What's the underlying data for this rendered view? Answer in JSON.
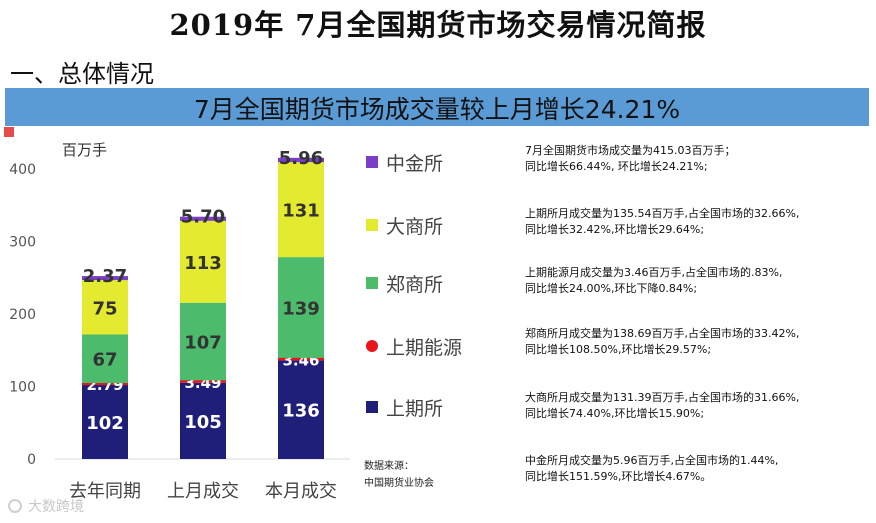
{
  "report_title": "2019年 7月全国期货市场交易情况简报",
  "section_heading": "一、总体情况",
  "banner": "7月全国期货市场成交量较上月增长24.21%",
  "chart_data": {
    "type": "bar",
    "stacked": true,
    "unit_label": "百万手",
    "categories": [
      "去年同期",
      "上月成交",
      "本月成交"
    ],
    "ylim": [
      0,
      420
    ],
    "yticks": [
      0,
      100,
      200,
      300,
      400
    ],
    "grid": false,
    "legend_position": "right",
    "series": [
      {
        "name": "上期所",
        "values": [
          102,
          105,
          136
        ],
        "labels": [
          "102",
          "105",
          "136"
        ],
        "color": "#1f1f7a",
        "label_color": "#ffffff"
      },
      {
        "name": "上期能源",
        "values": [
          2.79,
          3.49,
          3.46
        ],
        "labels": [
          "2.79",
          "3.49",
          "3.46"
        ],
        "color": "#e8151b",
        "label_color": "#ffffff"
      },
      {
        "name": "郑商所",
        "values": [
          67,
          107,
          139
        ],
        "labels": [
          "67",
          "107",
          "139"
        ],
        "color": "#4cbb6c",
        "label_color": "#333333"
      },
      {
        "name": "大商所",
        "values": [
          75,
          113,
          131
        ],
        "labels": [
          "75",
          "113",
          "131"
        ],
        "color": "#e3ea2f",
        "label_color": "#333333"
      },
      {
        "name": "中金所",
        "values": [
          2.37,
          5.7,
          5.96
        ],
        "labels": [
          "2.37",
          "5.70",
          "5.96"
        ],
        "color": "#7b3fc7",
        "label_color": "#333333"
      }
    ],
    "legend_order": [
      "中金所",
      "大商所",
      "郑商所",
      "上期能源",
      "上期所"
    ]
  },
  "source": {
    "line1": "数据来源：",
    "line2": "中国期货业协会"
  },
  "notes": [
    {
      "line1": "7月全国期货市场成交量为415.03百万手；",
      "line2": "同比增长66.44%, 环比增长24.21%;"
    },
    {
      "line1": "上期所月成交量为135.54百万手,占全国市场的32.66%,",
      "line2": "同比增长32.42%,环比增长29.64%;"
    },
    {
      "line1": "上期能源月成交量为3.46百万手,占全国市场的.83%,",
      "line2": "同比增长24.00%,环比下降0.84%;"
    },
    {
      "line1": "郑商所月成交量为138.69百万手,占全国市场的33.42%,",
      "line2": "同比增长108.50%,环比增长29.57%;"
    },
    {
      "line1": "大商所月成交量为131.39百万手,占全国市场的31.66%,",
      "line2": "同比增长74.40%,环比增长15.90%;"
    },
    {
      "line1": "中金所月成交量为5.96百万手,占全国市场的1.44%,",
      "line2": "同比增长151.59%,环比增长4.67%。"
    }
  ],
  "watermark": "大数跨境"
}
